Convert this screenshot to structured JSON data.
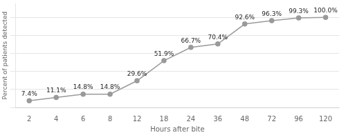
{
  "chart_data": {
    "type": "line",
    "categories": [
      "2",
      "4",
      "6",
      "8",
      "12",
      "18",
      "24",
      "36",
      "48",
      "72",
      "96",
      "120"
    ],
    "values": [
      7.4,
      11.1,
      14.8,
      14.8,
      29.6,
      51.9,
      66.7,
      70.4,
      92.6,
      96.3,
      99.3,
      100.0
    ],
    "value_labels": [
      "7.4%",
      "11.1%",
      "14.8%",
      "14.8%",
      "29.6%",
      "51.9%",
      "66.7%",
      "70.4%",
      "92.6%",
      "96.3%",
      "99.3%",
      "100.0%"
    ],
    "data_labels": true,
    "xlabel": "Hours after bite",
    "ylabel": "Percent of patients detected",
    "color": "#9a9a9a",
    "ylim": [
      0,
      115
    ],
    "yticks": [
      0,
      20,
      40,
      60,
      80,
      100
    ],
    "grid": true,
    "tick_labels": "x",
    "marker": "circle"
  }
}
